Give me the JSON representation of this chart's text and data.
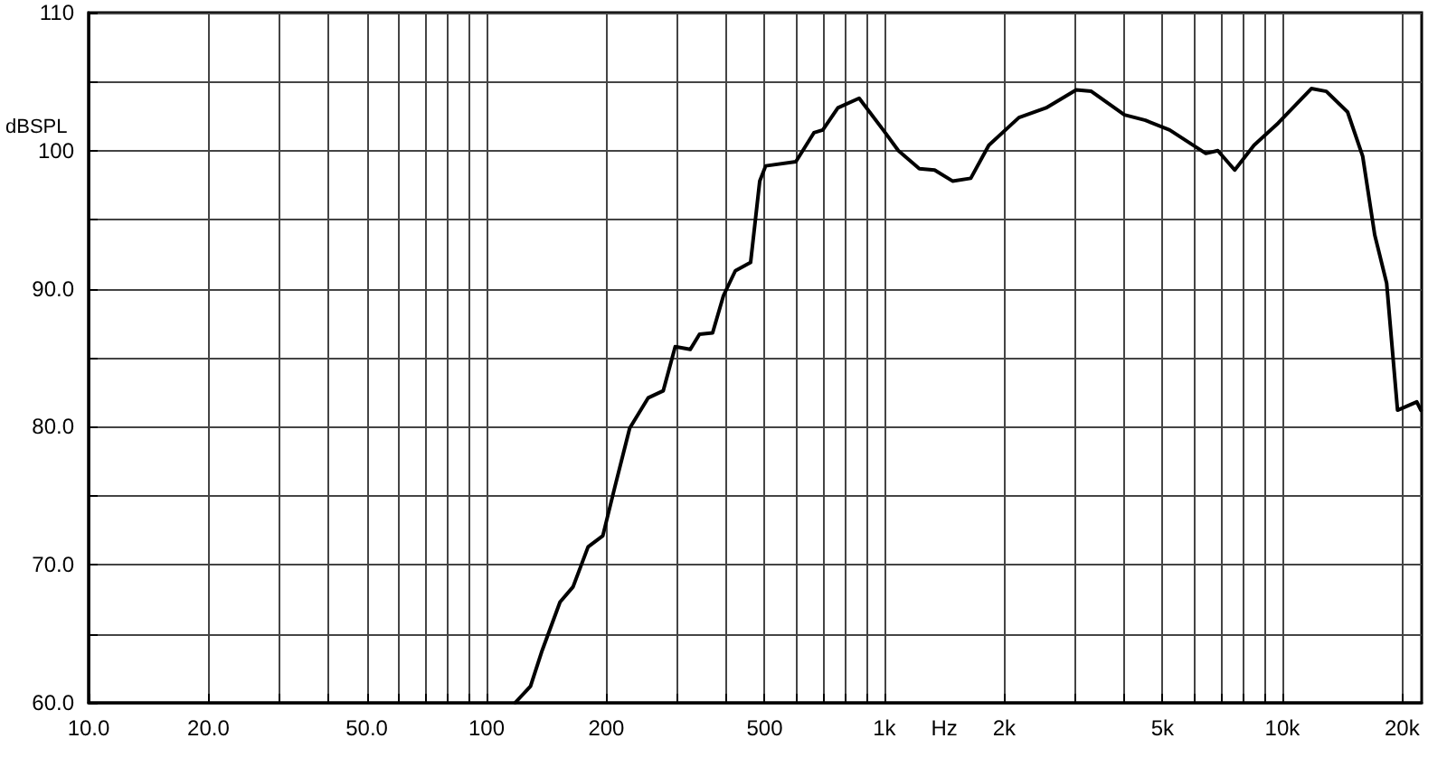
{
  "chart_data": {
    "type": "line",
    "xlabel": "Hz",
    "ylabel": "dBSPL",
    "log": "x",
    "grid": true,
    "xlim": [
      10,
      22400
    ],
    "ylim": [
      60,
      110
    ],
    "xticks": [
      {
        "value": 10,
        "label": "10.0"
      },
      {
        "value": 20,
        "label": "20.0"
      },
      {
        "value": 30,
        "label": null
      },
      {
        "value": 40,
        "label": null
      },
      {
        "value": 50,
        "label": "50.0"
      },
      {
        "value": 60,
        "label": null
      },
      {
        "value": 70,
        "label": null
      },
      {
        "value": 80,
        "label": null
      },
      {
        "value": 90,
        "label": null
      },
      {
        "value": 100,
        "label": "100"
      },
      {
        "value": 200,
        "label": "200"
      },
      {
        "value": 300,
        "label": null
      },
      {
        "value": 400,
        "label": null
      },
      {
        "value": 500,
        "label": "500"
      },
      {
        "value": 600,
        "label": null
      },
      {
        "value": 700,
        "label": null
      },
      {
        "value": 800,
        "label": null
      },
      {
        "value": 900,
        "label": null
      },
      {
        "value": 1000,
        "label": "1k"
      },
      {
        "value": 2000,
        "label": "2k"
      },
      {
        "value": 3000,
        "label": null
      },
      {
        "value": 4000,
        "label": null
      },
      {
        "value": 5000,
        "label": "5k"
      },
      {
        "value": 6000,
        "label": null
      },
      {
        "value": 7000,
        "label": null
      },
      {
        "value": 8000,
        "label": null
      },
      {
        "value": 9000,
        "label": null
      },
      {
        "value": 10000,
        "label": "10k"
      },
      {
        "value": 20000,
        "label": "20k"
      }
    ],
    "yticks": [
      {
        "value": 60,
        "label": "60.0"
      },
      {
        "value": 65,
        "label": null
      },
      {
        "value": 70,
        "label": "70.0"
      },
      {
        "value": 75,
        "label": null
      },
      {
        "value": 80,
        "label": "80.0"
      },
      {
        "value": 85,
        "label": null
      },
      {
        "value": 90,
        "label": "90.0"
      },
      {
        "value": 95,
        "label": null
      },
      100,
      {
        "value": 105,
        "label": null
      },
      110
    ],
    "series": [
      {
        "color": "#000000",
        "x": [
          118,
          129,
          138,
          153,
          165,
          180,
          196,
          210,
          229,
          255,
          278,
          298,
          325,
          343,
          370,
          394,
          422,
          461,
          486,
          503,
          599,
          665,
          700,
          764,
          864,
          993,
          1084,
          1224,
          1337,
          1483,
          1648,
          1830,
          2178,
          2548,
          3034,
          3311,
          4010,
          4527,
          5210,
          6424,
          6885,
          7592,
          8491,
          9767,
          11830,
          12900,
          14590,
          15920,
          17070,
          18290,
          19480,
          21780,
          22300
        ],
        "values": [
          60,
          61.2,
          63.8,
          67.3,
          68.4,
          71.3,
          72.1,
          75.6,
          79.9,
          82.1,
          82.6,
          85.8,
          85.6,
          86.7,
          86.8,
          89.5,
          91.3,
          91.9,
          97.8,
          98.9,
          99.2,
          101.3,
          101.5,
          103.1,
          103.8,
          101.5,
          100,
          98.7,
          98.6,
          97.8,
          98,
          100.4,
          102.4,
          103.1,
          104.4,
          104.3,
          102.6,
          102.2,
          101.5,
          99.8,
          100,
          98.6,
          100.4,
          102,
          104.5,
          104.3,
          102.8,
          99.6,
          93.9,
          90.4,
          81.2,
          81.8,
          81.2
        ]
      }
    ]
  }
}
